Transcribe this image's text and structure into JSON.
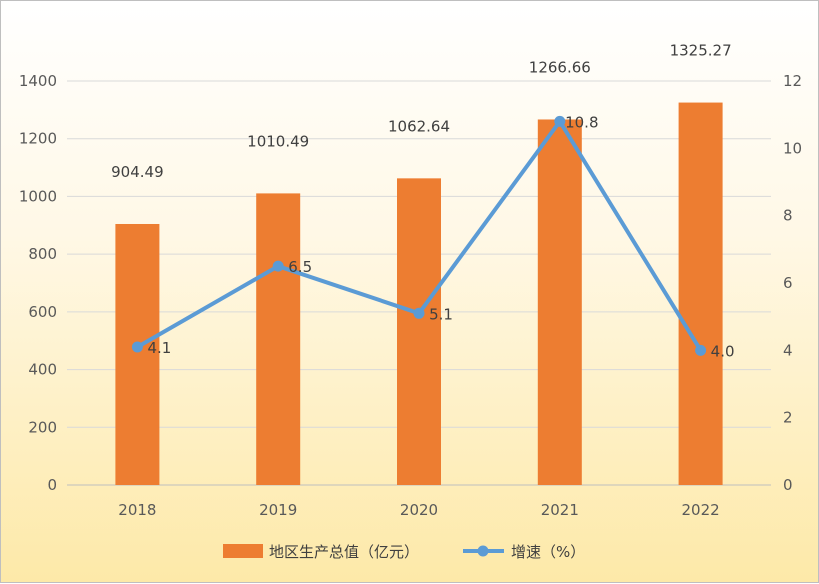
{
  "chart_data": {
    "type": "bar+line",
    "categories": [
      "2018",
      "2019",
      "2020",
      "2021",
      "2022"
    ],
    "series": [
      {
        "name": "地区生产总值（亿元）",
        "type": "bar",
        "axis": "left",
        "values": [
          904.49,
          1010.49,
          1062.64,
          1266.66,
          1325.27
        ],
        "labels": [
          "904.49",
          "1010.49",
          "1062.64",
          "1266.66",
          "1325.27"
        ],
        "color": "#ed7d31"
      },
      {
        "name": "增速（%）",
        "type": "line",
        "axis": "right",
        "values": [
          4.1,
          6.5,
          5.1,
          10.8,
          4.0
        ],
        "labels": [
          "4.1",
          "6.5",
          "5.1",
          "10.8",
          "4.0"
        ],
        "color": "#5b9bd5"
      }
    ],
    "y_left": {
      "min": 0,
      "max": 1400,
      "ticks": [
        "0",
        "200",
        "400",
        "600",
        "800",
        "1000",
        "1200",
        "1400"
      ]
    },
    "y_right": {
      "min": 0,
      "max": 12,
      "ticks": [
        "0",
        "2",
        "4",
        "6",
        "8",
        "10",
        "12"
      ]
    },
    "grid": true,
    "legend_position": "bottom"
  }
}
